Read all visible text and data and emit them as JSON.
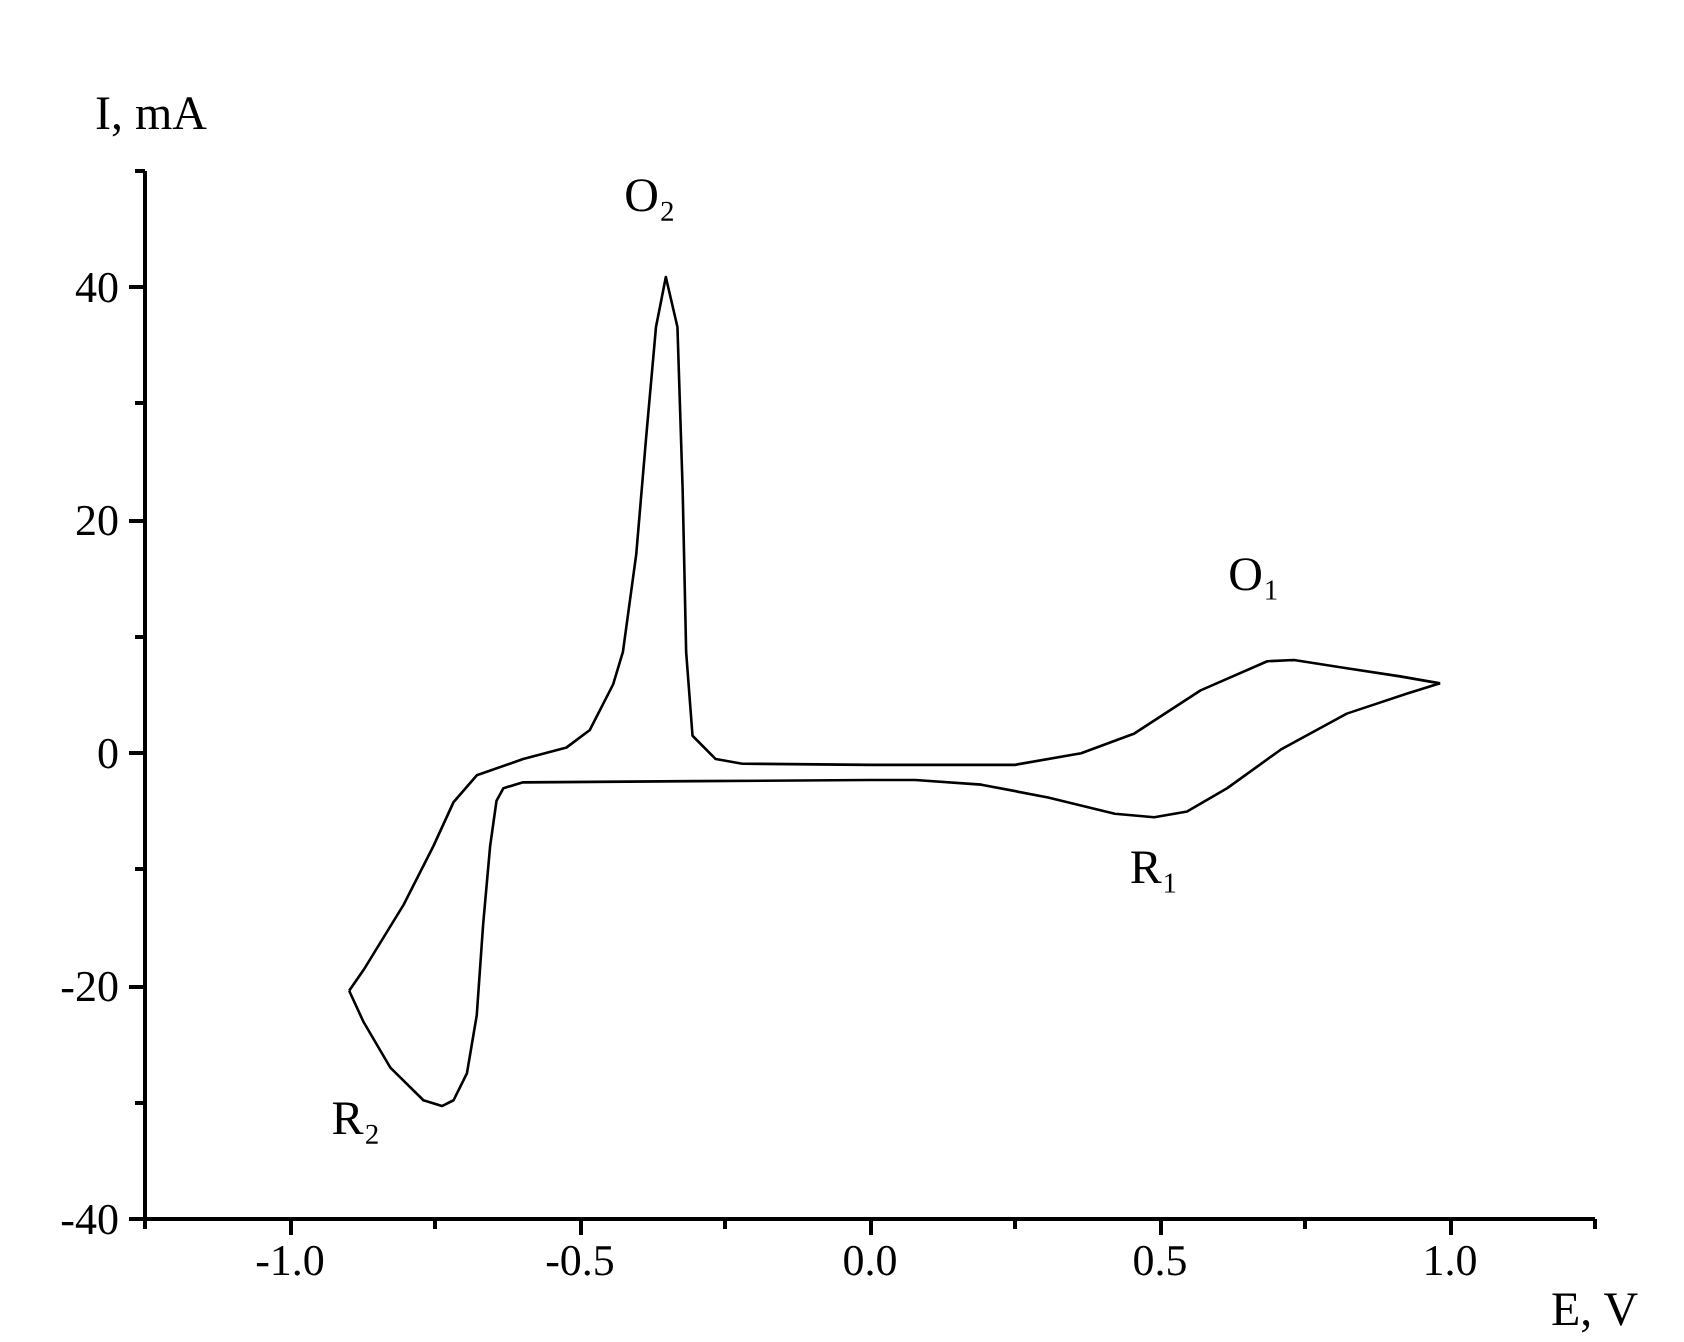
{
  "chart_data": {
    "type": "line",
    "xlabel": "E, V",
    "ylabel": "I, mA",
    "xlim": [
      -1.25,
      1.25
    ],
    "xticks": [
      {
        "value": -1.0,
        "label": "-1.0"
      },
      -0.5,
      {
        "value": 0.0,
        "label": "0.0"
      },
      0.5,
      {
        "value": 1.0,
        "label": "1.0"
      }
    ],
    "ylim": [
      -40,
      50
    ],
    "yticks": [
      -40,
      -20,
      0,
      20,
      40
    ],
    "grid": false,
    "marker": "none",
    "line_style": "solid",
    "series": [
      {
        "color": "#000000",
        "x": [
          -0.898,
          -0.873,
          -0.804,
          -0.753,
          -0.718,
          -0.678,
          -0.598,
          -0.523,
          -0.483,
          -0.443,
          -0.426,
          -0.403,
          -0.386,
          -0.369,
          -0.352,
          -0.332,
          -0.323,
          -0.317,
          -0.306,
          -0.266,
          -0.22,
          0.0,
          0.25,
          0.364,
          0.456,
          0.57,
          0.685,
          0.731,
          0.822,
          0.914,
          0.983
        ],
        "values": [
          -20.4,
          -18.6,
          -13.0,
          -8.0,
          -4.2,
          -1.9,
          -0.5,
          0.5,
          2.0,
          5.9,
          8.7,
          17.1,
          27.1,
          36.6,
          40.9,
          36.6,
          22.6,
          8.7,
          1.5,
          -0.5,
          -0.9,
          -1.0,
          -1.0,
          0.0,
          1.7,
          5.4,
          7.9,
          8.0,
          7.3,
          6.6,
          6.0
        ]
      },
      {
        "color": "#000000",
        "x": [
          0.983,
          0.925,
          0.822,
          0.708,
          0.616,
          0.547,
          0.49,
          0.422,
          0.307,
          0.192,
          0.078,
          0.0,
          -0.3,
          -0.598,
          -0.632,
          -0.644,
          -0.655,
          -0.667,
          -0.678,
          -0.695,
          -0.718,
          -0.738,
          -0.77,
          -0.827,
          -0.873,
          -0.898
        ],
        "values": [
          6.0,
          5.1,
          3.4,
          0.3,
          -3.0,
          -5.0,
          -5.5,
          -5.2,
          -3.8,
          -2.7,
          -2.3,
          -2.3,
          -2.4,
          -2.5,
          -3.0,
          -4.1,
          -8.0,
          -14.7,
          -22.5,
          -27.5,
          -29.8,
          -30.3,
          -29.8,
          -27.0,
          -23.1,
          -20.4
        ]
      }
    ],
    "annotations": [
      {
        "text": "O₂",
        "x": -0.352,
        "y": 40.9
      },
      {
        "text": "O₁",
        "x": 0.731,
        "y": 8.0
      },
      {
        "text": "R₁",
        "x": 0.49,
        "y": -5.5
      },
      {
        "text": "R₂",
        "x": -0.738,
        "y": -30.3
      }
    ]
  }
}
